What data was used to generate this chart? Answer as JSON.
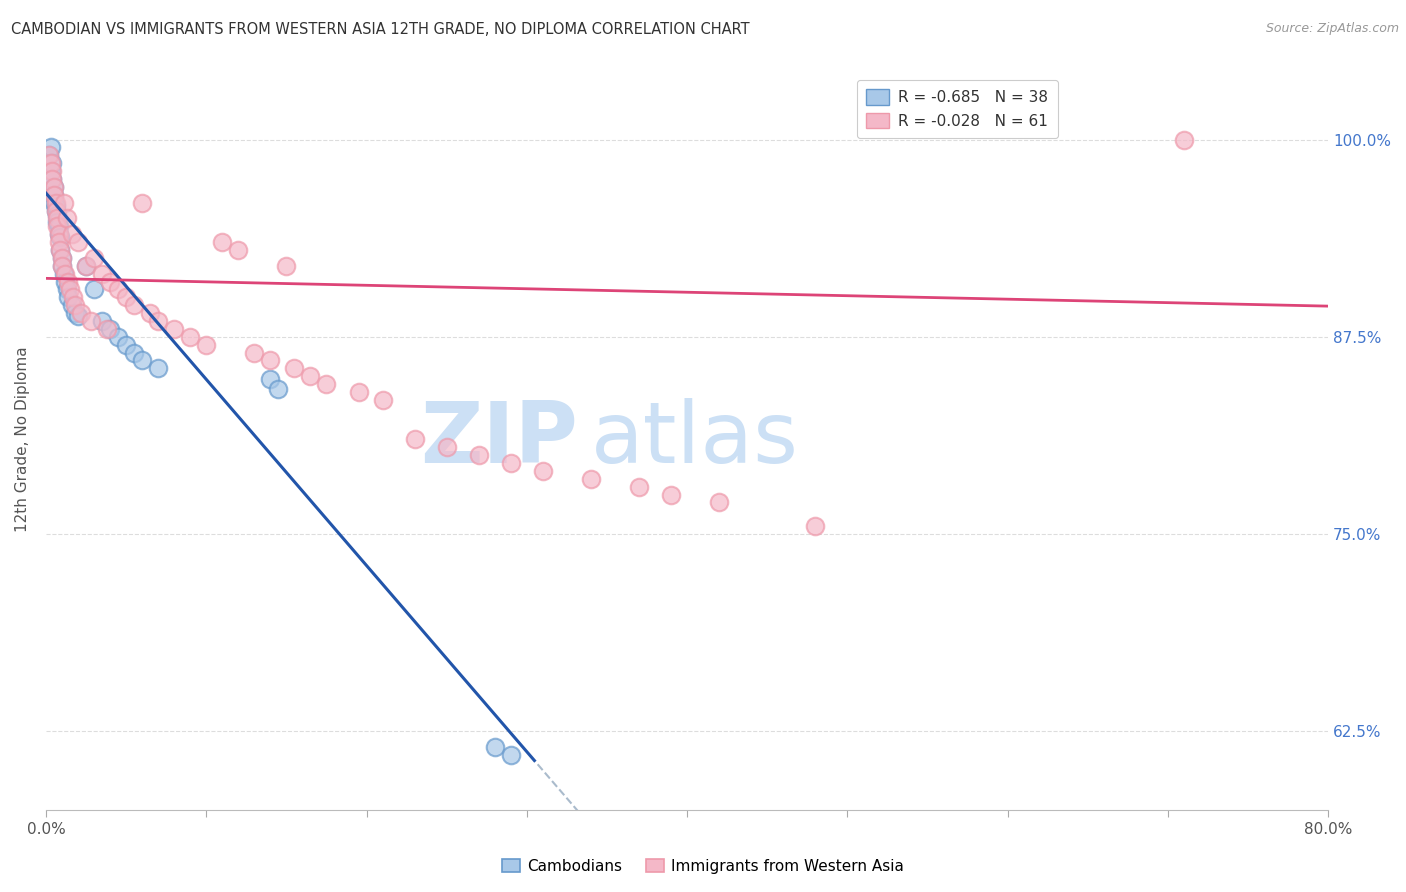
{
  "title": "CAMBODIAN VS IMMIGRANTS FROM WESTERN ASIA 12TH GRADE, NO DIPLOMA CORRELATION CHART",
  "source": "Source: ZipAtlas.com",
  "ylabel": "12th Grade, No Diploma",
  "ytick_labels": [
    "100.0%",
    "87.5%",
    "75.0%",
    "62.5%"
  ],
  "ytick_values": [
    1.0,
    0.875,
    0.75,
    0.625
  ],
  "blue_label": "Cambodians",
  "pink_label": "Immigrants from Western Asia",
  "blue_R": -0.685,
  "blue_N": 38,
  "pink_R": -0.028,
  "pink_N": 61,
  "blue_color": "#a8c8e8",
  "pink_color": "#f4b8c8",
  "blue_edge_color": "#6699cc",
  "pink_edge_color": "#ee99aa",
  "blue_line_color": "#2255aa",
  "pink_line_color": "#dd4477",
  "dash_color": "#aabbcc",
  "grid_color": "#dddddd",
  "background_color": "#ffffff",
  "watermark_zip_color": "#cce0f5",
  "watermark_atlas_color": "#cce0f5",
  "title_color": "#333333",
  "source_color": "#999999",
  "right_tick_color": "#4477cc",
  "xlim": [
    0.0,
    0.8
  ],
  "ylim": [
    0.575,
    1.045
  ],
  "xtick_values": [
    0.0,
    0.1,
    0.2,
    0.3,
    0.4,
    0.5,
    0.6,
    0.7,
    0.8
  ],
  "blue_x": [
    0.002,
    0.003,
    0.003,
    0.004,
    0.004,
    0.005,
    0.005,
    0.005,
    0.006,
    0.006,
    0.007,
    0.007,
    0.008,
    0.008,
    0.009,
    0.009,
    0.01,
    0.01,
    0.011,
    0.012,
    0.013,
    0.014,
    0.016,
    0.018,
    0.02,
    0.025,
    0.03,
    0.035,
    0.04,
    0.045,
    0.05,
    0.055,
    0.06,
    0.07,
    0.14,
    0.145,
    0.28,
    0.29
  ],
  "blue_y": [
    0.99,
    0.995,
    0.98,
    0.985,
    0.975,
    0.97,
    0.965,
    0.96,
    0.958,
    0.955,
    0.952,
    0.948,
    0.945,
    0.94,
    0.938,
    0.93,
    0.925,
    0.92,
    0.915,
    0.91,
    0.905,
    0.9,
    0.895,
    0.89,
    0.888,
    0.92,
    0.905,
    0.885,
    0.88,
    0.875,
    0.87,
    0.865,
    0.86,
    0.855,
    0.848,
    0.842,
    0.615,
    0.61
  ],
  "pink_x": [
    0.002,
    0.003,
    0.004,
    0.004,
    0.005,
    0.005,
    0.006,
    0.006,
    0.007,
    0.007,
    0.008,
    0.008,
    0.009,
    0.01,
    0.01,
    0.011,
    0.012,
    0.013,
    0.014,
    0.015,
    0.016,
    0.017,
    0.018,
    0.02,
    0.022,
    0.025,
    0.028,
    0.03,
    0.035,
    0.038,
    0.04,
    0.045,
    0.05,
    0.055,
    0.06,
    0.065,
    0.07,
    0.08,
    0.09,
    0.1,
    0.11,
    0.12,
    0.13,
    0.14,
    0.15,
    0.155,
    0.165,
    0.175,
    0.195,
    0.21,
    0.23,
    0.25,
    0.27,
    0.29,
    0.31,
    0.34,
    0.37,
    0.39,
    0.42,
    0.48,
    0.71
  ],
  "pink_y": [
    0.99,
    0.985,
    0.98,
    0.975,
    0.97,
    0.965,
    0.96,
    0.955,
    0.95,
    0.945,
    0.94,
    0.935,
    0.93,
    0.925,
    0.92,
    0.96,
    0.915,
    0.95,
    0.91,
    0.905,
    0.94,
    0.9,
    0.895,
    0.935,
    0.89,
    0.92,
    0.885,
    0.925,
    0.915,
    0.88,
    0.91,
    0.905,
    0.9,
    0.895,
    0.96,
    0.89,
    0.885,
    0.88,
    0.875,
    0.87,
    0.935,
    0.93,
    0.865,
    0.86,
    0.92,
    0.855,
    0.85,
    0.845,
    0.84,
    0.835,
    0.81,
    0.805,
    0.8,
    0.795,
    0.79,
    0.785,
    0.78,
    0.775,
    0.77,
    0.755,
    1.0
  ]
}
